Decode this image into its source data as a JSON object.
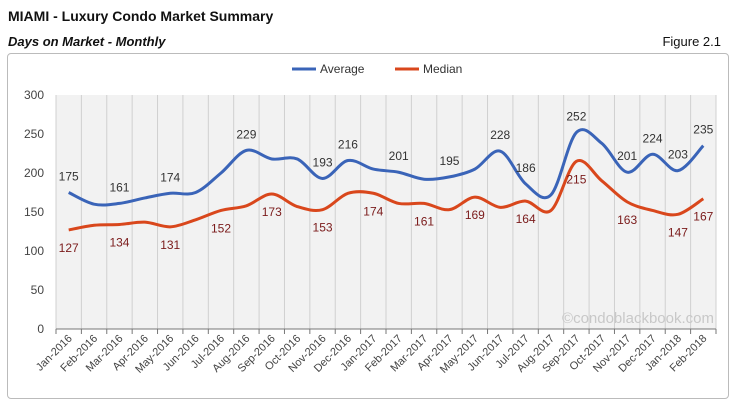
{
  "header": {
    "title": "MIAMI - Luxury Condo Market Summary",
    "subtitle": "Days on Market - Monthly",
    "figure": "Figure 2.1"
  },
  "watermark": "©condoblackbook.com",
  "chart_data": {
    "type": "line",
    "title": "",
    "xlabel": "",
    "ylabel": "",
    "ylim": [
      0,
      300
    ],
    "yticks": [
      0,
      50,
      100,
      150,
      200,
      250,
      300
    ],
    "grid": "vertical",
    "legend": "top-center",
    "categories": [
      "Jan-2016",
      "Feb-2016",
      "Mar-2016",
      "Apr-2016",
      "May-2016",
      "Jun-2016",
      "Jul-2016",
      "Aug-2016",
      "Sep-2016",
      "Oct-2016",
      "Nov-2016",
      "Dec-2016",
      "Jan-2017",
      "Feb-2017",
      "Mar-2017",
      "Apr-2017",
      "May-2017",
      "Jun-2017",
      "Jul-2017",
      "Aug-2017",
      "Sep-2017",
      "Oct-2017",
      "Nov-2017",
      "Dec-2017",
      "Jan-2018",
      "Feb-2018"
    ],
    "series": [
      {
        "name": "Average",
        "color": "#3a64b8",
        "values": [
          175,
          160,
          161,
          168,
          174,
          175,
          200,
          229,
          218,
          218,
          193,
          216,
          205,
          201,
          192,
          195,
          205,
          228,
          186,
          172,
          252,
          238,
          201,
          224,
          203,
          235
        ],
        "labeled": [
          0,
          2,
          4,
          7,
          10,
          11,
          13,
          15,
          17,
          18,
          20,
          22,
          23,
          24,
          25
        ]
      },
      {
        "name": "Median",
        "color": "#d9471c",
        "values": [
          127,
          133,
          134,
          137,
          131,
          140,
          152,
          158,
          173,
          157,
          153,
          174,
          174,
          161,
          161,
          153,
          169,
          156,
          164,
          152,
          215,
          190,
          163,
          152,
          147,
          167
        ],
        "labeled": [
          0,
          2,
          4,
          6,
          8,
          10,
          12,
          14,
          16,
          18,
          20,
          22,
          24,
          25
        ]
      }
    ]
  }
}
